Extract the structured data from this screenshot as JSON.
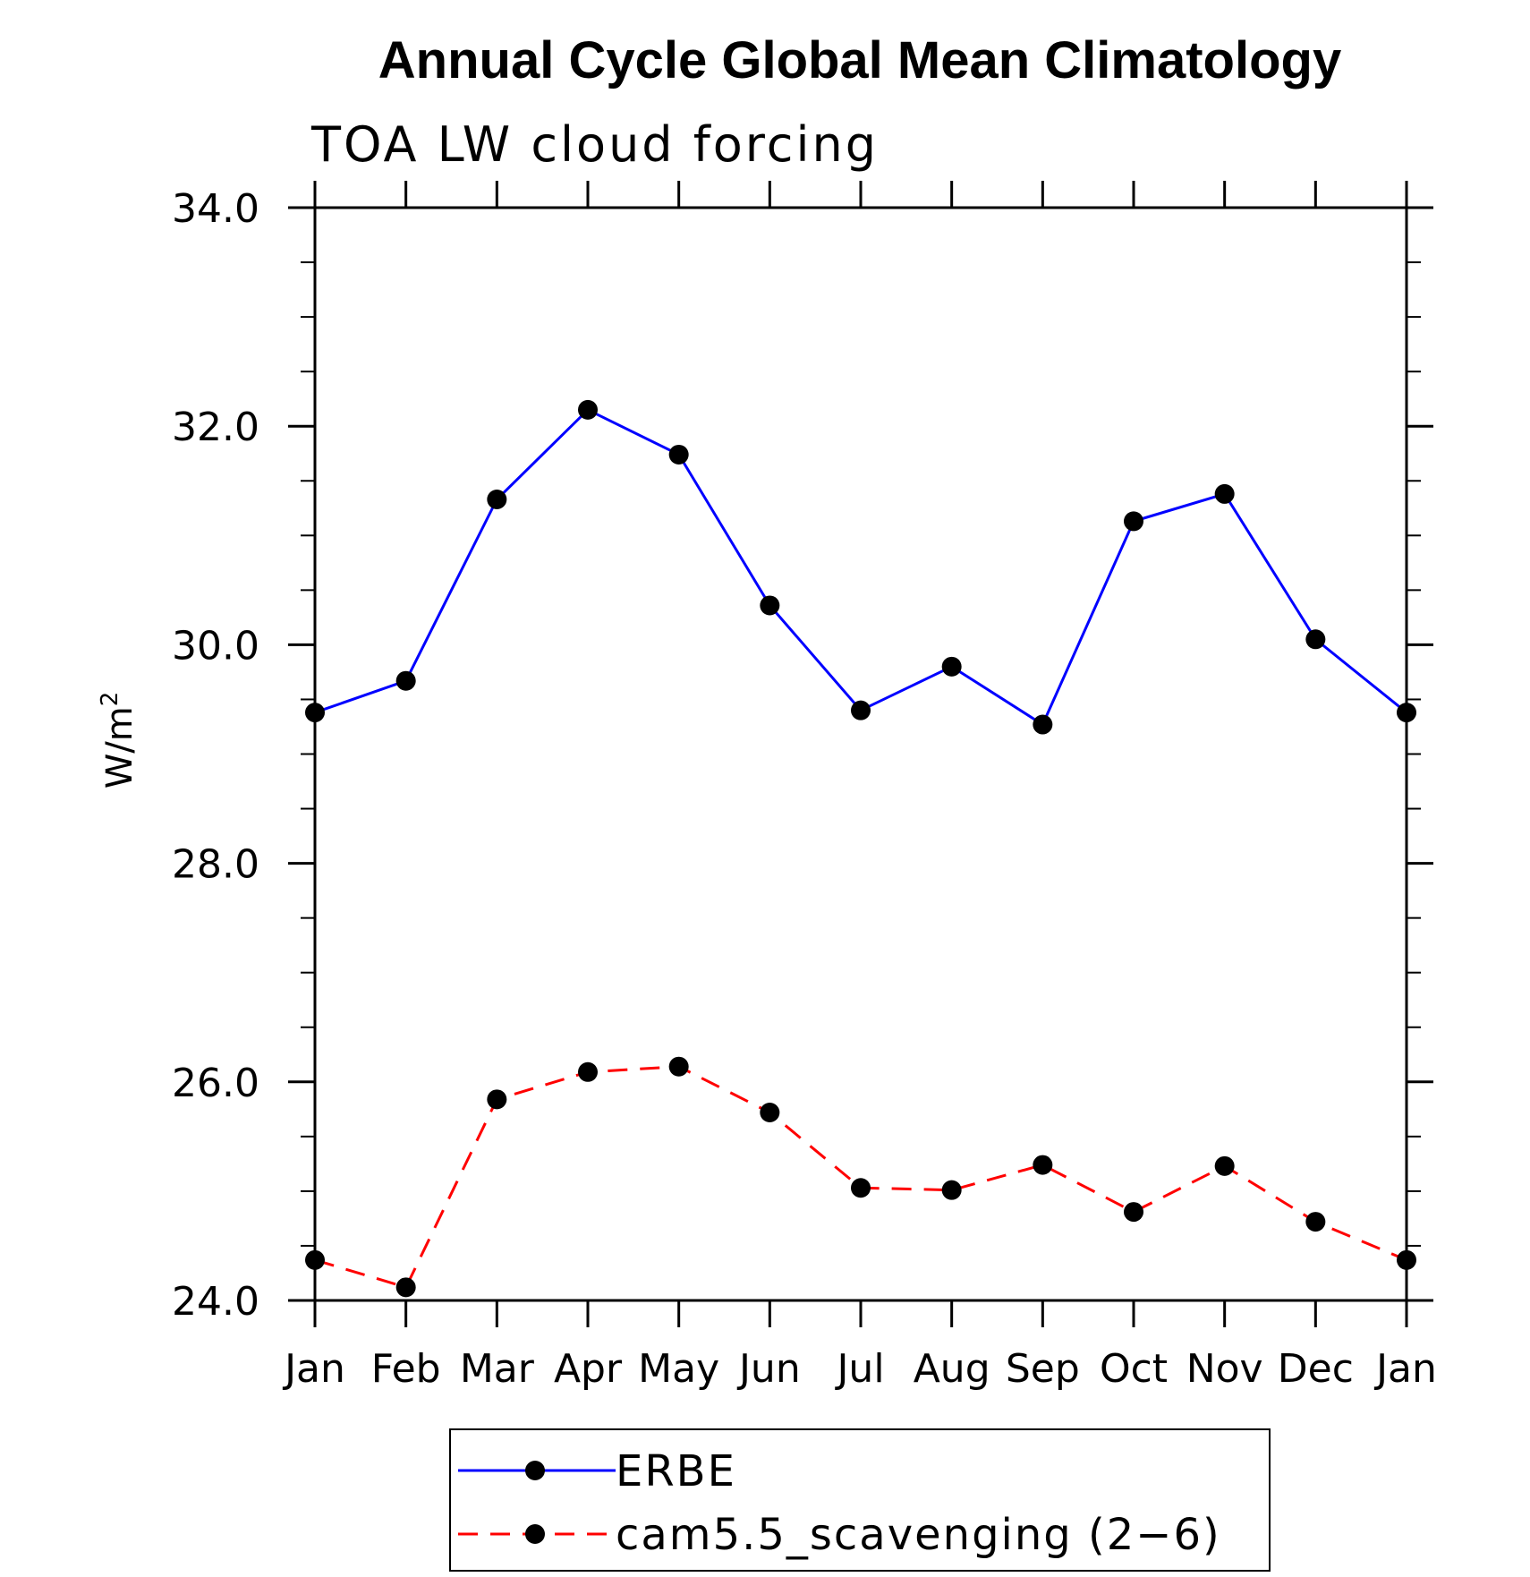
{
  "chart_data": {
    "type": "line",
    "title": "Annual Cycle Global Mean Climatology",
    "subtitle": "TOA LW cloud forcing",
    "xlabel": "",
    "ylabel": "W/m",
    "ylabel_superscript": "2",
    "ylim": [
      24.0,
      34.0
    ],
    "y_major_ticks": [
      "24.0",
      "26.0",
      "28.0",
      "30.0",
      "32.0",
      "34.0"
    ],
    "y_major_values": [
      24,
      26,
      28,
      30,
      32,
      34
    ],
    "y_minor_step": 0.5,
    "categories": [
      "Jan",
      "Feb",
      "Mar",
      "Apr",
      "May",
      "Jun",
      "Jul",
      "Aug",
      "Sep",
      "Oct",
      "Nov",
      "Dec",
      "Jan"
    ],
    "series": [
      {
        "name": "ERBE",
        "color": "#0000ff",
        "dash": "solid",
        "marker": "filled-circle",
        "values": [
          29.38,
          29.67,
          31.33,
          32.15,
          31.74,
          30.36,
          29.4,
          29.8,
          29.27,
          31.13,
          31.38,
          30.05,
          29.38
        ]
      },
      {
        "name": "cam5.5_scavenging (2−6)",
        "color": "#ff0000",
        "dash": "dashed",
        "marker": "filled-circle",
        "values": [
          24.37,
          24.12,
          25.84,
          26.09,
          26.14,
          25.72,
          25.03,
          25.01,
          25.24,
          24.81,
          25.23,
          24.72,
          24.37
        ]
      }
    ],
    "legend": {
      "position": "bottom-center",
      "entries": [
        "ERBE",
        "cam5.5_scavenging (2−6)"
      ]
    }
  }
}
